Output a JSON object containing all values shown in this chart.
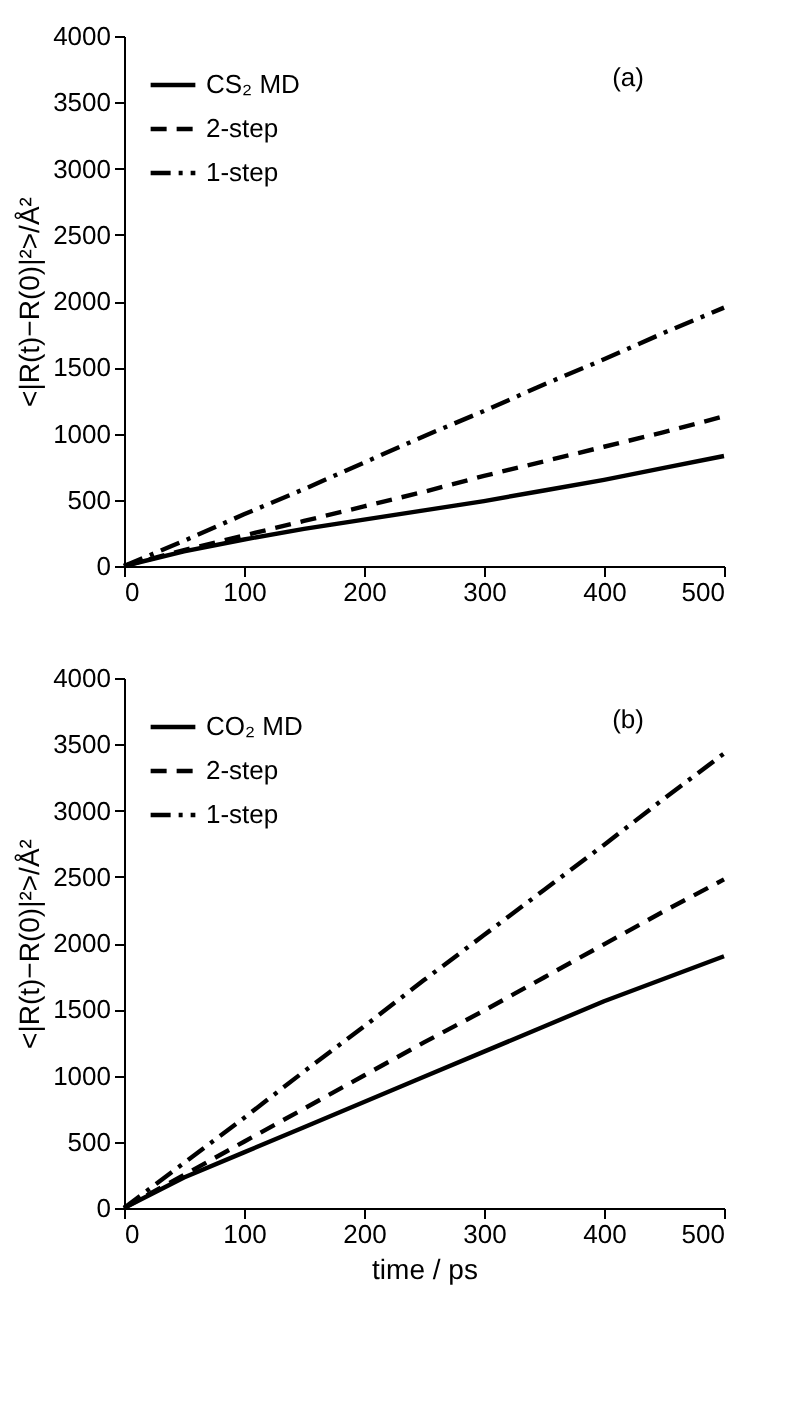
{
  "chart_data": [
    {
      "type": "line",
      "ylabel": "<|R(t)−R(0)|²>/Å²",
      "annotations": [
        "(a)"
      ],
      "legend": "top left",
      "grid": false,
      "marker": "none",
      "tick_labels": "xy",
      "x": [
        0,
        50,
        100,
        150,
        200,
        250,
        300,
        350,
        400,
        450,
        500
      ],
      "xlim": [
        0,
        500
      ],
      "xticks": [
        0,
        100,
        200,
        300,
        400,
        500
      ],
      "ylim": [
        0,
        4000
      ],
      "yticks": [
        0,
        500,
        1000,
        1500,
        2000,
        2500,
        3000,
        3500,
        4000
      ],
      "series": [
        {
          "name": "CS₂ MD",
          "color": "#000000",
          "line_style": "solid",
          "values": [
            0,
            110,
            200,
            280,
            350,
            420,
            490,
            570,
            650,
            740,
            830
          ]
        },
        {
          "name": "2-step",
          "color": "#000000",
          "line_style": "dashed",
          "values": [
            0,
            120,
            230,
            340,
            450,
            560,
            680,
            790,
            900,
            1010,
            1130
          ]
        },
        {
          "name": "1-step",
          "color": "#000000",
          "line_style": "dashed-dotted",
          "values": [
            0,
            190,
            390,
            580,
            780,
            980,
            1170,
            1370,
            1560,
            1760,
            1950
          ]
        }
      ]
    },
    {
      "type": "line",
      "xlabel": "time / ps",
      "ylabel": "<|R(t)−R(0)|²>/Å²",
      "annotations": [
        "(b)"
      ],
      "legend": "top left",
      "grid": false,
      "marker": "none",
      "x": [
        0,
        50,
        100,
        150,
        200,
        250,
        300,
        350,
        400,
        450,
        500
      ],
      "xlim": [
        0,
        500
      ],
      "xticks": [
        0,
        100,
        200,
        300,
        400,
        500
      ],
      "ylim": [
        0,
        4000
      ],
      "yticks": [
        0,
        500,
        1000,
        1500,
        2000,
        2500,
        3000,
        3500,
        4000
      ],
      "series": [
        {
          "name": "CO₂ MD",
          "color": "#000000",
          "line_style": "solid",
          "values": [
            0,
            230,
            420,
            610,
            800,
            990,
            1180,
            1370,
            1560,
            1730,
            1900
          ]
        },
        {
          "name": "2-step",
          "color": "#000000",
          "line_style": "dashed",
          "values": [
            0,
            250,
            500,
            750,
            1000,
            1250,
            1490,
            1740,
            1990,
            2240,
            2480
          ]
        },
        {
          "name": "1-step",
          "color": "#000000",
          "line_style": "dashed-dotted",
          "values": [
            0,
            340,
            680,
            1030,
            1370,
            1720,
            2060,
            2400,
            2740,
            3090,
            3430
          ]
        }
      ]
    }
  ]
}
